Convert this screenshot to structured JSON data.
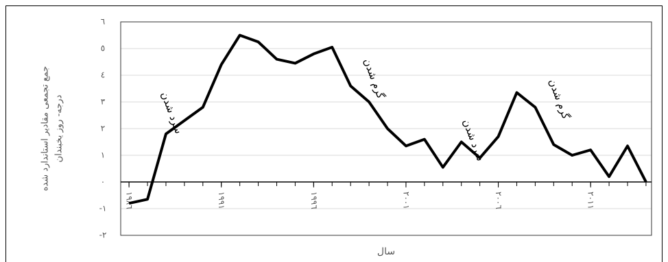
{
  "chart_data": {
    "type": "line",
    "y_label": [
      "جمع تجمعی مقادیر استاندارد شده",
      "درجه- روز یخبندان"
    ],
    "x_label": "سال",
    "x": [
      1986,
      1987,
      1988,
      1989,
      1990,
      1991,
      1992,
      1993,
      1994,
      1995,
      1996,
      1997,
      1998,
      1999,
      2000,
      2001,
      2002,
      2003,
      2004,
      2005,
      2006,
      2007,
      2008,
      2009,
      2010,
      2011,
      2012,
      2013,
      2014
    ],
    "series": [
      {
        "color": "#000000",
        "values": [
          -0.8,
          -0.65,
          1.8,
          2.3,
          2.8,
          4.4,
          5.5,
          5.25,
          4.6,
          4.45,
          4.8,
          5.05,
          3.6,
          3.0,
          2.0,
          1.35,
          1.6,
          0.55,
          1.5,
          0.9,
          1.7,
          3.35,
          2.8,
          1.4,
          1.0,
          1.2,
          0.2,
          1.35,
          0
        ]
      }
    ],
    "xlim": [
      1985.55,
      2014.3
    ],
    "xticks": [
      {
        "value": 1986,
        "label": "١٩٨٦"
      },
      {
        "value": 1991,
        "label": "١٩٩١"
      },
      {
        "value": 1996,
        "label": "١٩٩٦"
      },
      {
        "value": 2001,
        "label": "٢٠٠١"
      },
      {
        "value": 2006,
        "label": "٢٠٠٦"
      },
      {
        "value": 2011,
        "label": "٢٠١١"
      }
    ],
    "ylim": [
      -2,
      6
    ],
    "yticks": [
      {
        "value": -2,
        "label": "-٢"
      },
      {
        "value": -1,
        "label": "-١"
      },
      {
        "value": 0,
        "label": "٠"
      },
      {
        "value": 1,
        "label": "١"
      },
      {
        "value": 2,
        "label": "٢"
      },
      {
        "value": 3,
        "label": "٣"
      },
      {
        "value": 4,
        "label": "٤"
      },
      {
        "value": 5,
        "label": "٥"
      },
      {
        "value": 6,
        "label": "٦"
      }
    ],
    "grid": true,
    "annotations": [
      "سرد شدن",
      "گرم شدن",
      "سرد شدن",
      "گرم شدن"
    ]
  }
}
